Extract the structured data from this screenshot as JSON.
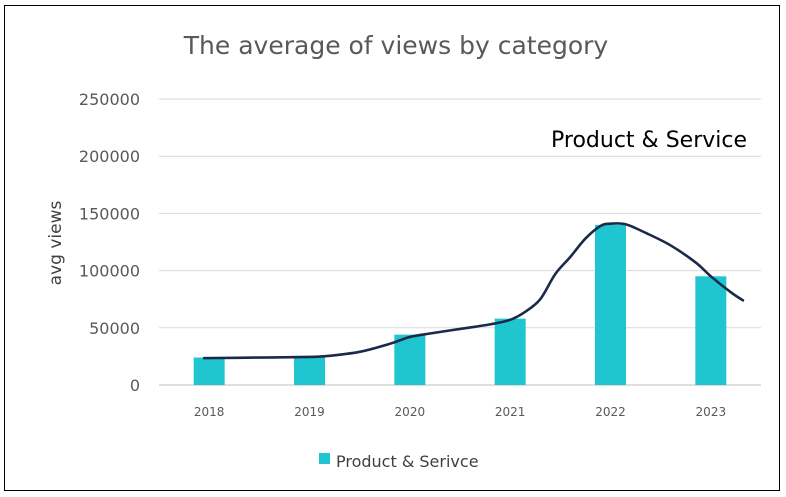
{
  "chart_data": {
    "type": "bar",
    "title": "The average of views by category",
    "annotation": "Product & Service",
    "xlabel": "",
    "ylabel": "avg views",
    "categories": [
      "2018",
      "2019",
      "2020",
      "2021",
      "2022",
      "2023"
    ],
    "ylim": [
      0,
      250000
    ],
    "yticks": [
      "0",
      "50000",
      "100000",
      "150000",
      "200000",
      "250000"
    ],
    "grid": true,
    "legend_position": "bottom",
    "series": [
      {
        "name": "Product & Serivce",
        "values": [
          24000,
          25000,
          44000,
          58000,
          140000,
          95000
        ],
        "color": "#1FC6D0"
      }
    ],
    "trendline": {
      "color": "#1B2A4A",
      "points": [
        [
          2017.95,
          23500
        ],
        [
          2018.5,
          24000
        ],
        [
          2019.0,
          24500
        ],
        [
          2019.2,
          25500
        ],
        [
          2019.5,
          29000
        ],
        [
          2019.8,
          36000
        ],
        [
          2020.0,
          42000
        ],
        [
          2020.2,
          45000
        ],
        [
          2020.5,
          49000
        ],
        [
          2020.8,
          53000
        ],
        [
          2021.0,
          57000
        ],
        [
          2021.15,
          64000
        ],
        [
          2021.3,
          75000
        ],
        [
          2021.45,
          97000
        ],
        [
          2021.6,
          112000
        ],
        [
          2021.75,
          128000
        ],
        [
          2021.9,
          139000
        ],
        [
          2022.0,
          141000
        ],
        [
          2022.15,
          140500
        ],
        [
          2022.35,
          133000
        ],
        [
          2022.6,
          122000
        ],
        [
          2022.85,
          107000
        ],
        [
          2023.0,
          95000
        ],
        [
          2023.2,
          81000
        ],
        [
          2023.32,
          74000
        ]
      ]
    }
  }
}
